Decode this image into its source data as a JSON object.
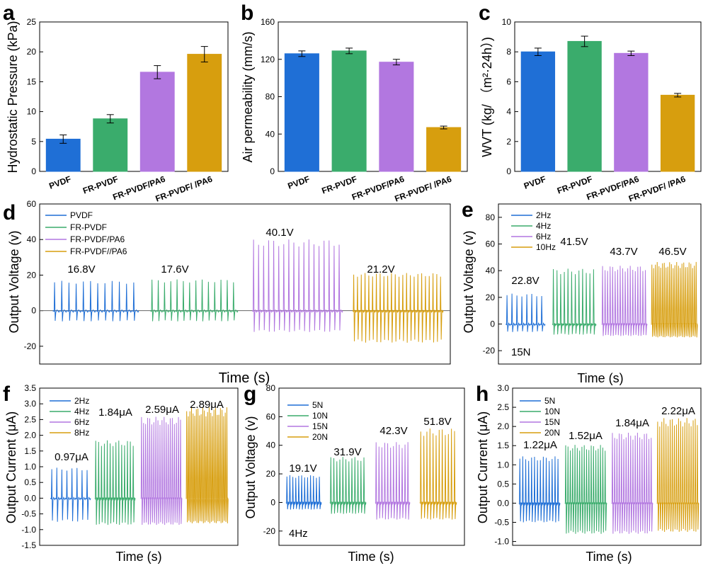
{
  "colors": [
    "#1f6fd6",
    "#3aac6c",
    "#b277e0",
    "#d79e0e"
  ],
  "chart_data": [
    {
      "id": "a",
      "type": "bar",
      "letter": "a",
      "ylabel": "Hydrostatic Pressure (kPa)",
      "ylim": [
        0,
        25
      ],
      "yticks": [
        0,
        5,
        10,
        15,
        20,
        25
      ],
      "categories": [
        "PVDF",
        "FR-PVDF",
        "FR-PVDF/PA6",
        "FR-PVDF/ /PA6"
      ],
      "values": [
        5.4,
        8.8,
        16.6,
        19.6
      ],
      "errors": [
        0.7,
        0.7,
        1.1,
        1.3
      ]
    },
    {
      "id": "b",
      "type": "bar",
      "letter": "b",
      "ylabel": "Air permeability (mm/s)",
      "ylim": [
        0,
        160
      ],
      "yticks": [
        0,
        40,
        80,
        120,
        160
      ],
      "categories": [
        "PVDF",
        "FR-PVDF",
        "FR-PVDF/PA6",
        "FR-PVDF/ /PA6"
      ],
      "values": [
        126,
        129,
        117,
        47
      ],
      "errors": [
        3,
        3,
        3,
        1.5
      ]
    },
    {
      "id": "c",
      "type": "bar",
      "letter": "c",
      "ylabel": "WVT (kg/ （m²·24h）)",
      "ylim": [
        0,
        10
      ],
      "yticks": [
        0,
        2,
        4,
        6,
        8,
        10
      ],
      "categories": [
        "PVDF",
        "FR-PVDF",
        "FR-PVDF/PA6",
        "FR-PVDF/ /PA6"
      ],
      "values": [
        8.0,
        8.7,
        7.9,
        5.1
      ],
      "errors": [
        0.25,
        0.35,
        0.15,
        0.12
      ]
    },
    {
      "id": "d",
      "type": "line",
      "letter": "d",
      "ylabel": "Output Voltage (v)",
      "xlabel": "Time (s)",
      "ylim": [
        -30,
        60
      ],
      "yticks": [
        -20,
        0,
        20,
        40,
        60
      ],
      "zero_line": true,
      "series": [
        {
          "name": "PVDF",
          "peak": 16.8,
          "low": -6,
          "pulses": 12
        },
        {
          "name": "FR-PVDF",
          "peak": 17.6,
          "low": -6,
          "pulses": 14
        },
        {
          "name": "FR-PVDF/PA6",
          "peak": 40.1,
          "low": -12,
          "pulses": 18
        },
        {
          "name": "FR-PVDF//PA6",
          "peak": 21.2,
          "low": -18,
          "pulses": 24
        }
      ],
      "peak_labels": [
        "16.8V",
        "17.6V",
        "40.1V",
        "21.2V"
      ],
      "note": ""
    },
    {
      "id": "e",
      "type": "line",
      "letter": "e",
      "ylabel": "Output Voltage (v)",
      "xlabel": "Time (s)",
      "ylim": [
        -30,
        90
      ],
      "yticks": [
        -20,
        0,
        20,
        40,
        60,
        80
      ],
      "series": [
        {
          "name": "2Hz",
          "peak": 22.8,
          "low": -6,
          "pulses": 8
        },
        {
          "name": "4Hz",
          "peak": 41.5,
          "low": -8,
          "pulses": 12
        },
        {
          "name": "6Hz",
          "peak": 43.7,
          "low": -9,
          "pulses": 18
        },
        {
          "name": "10Hz",
          "peak": 46.5,
          "low": -10,
          "pulses": 26
        }
      ],
      "peak_labels": [
        "22.8V",
        "41.5V",
        "43.7V",
        "46.5V"
      ],
      "note": "15N"
    },
    {
      "id": "f",
      "type": "line",
      "letter": "f",
      "ylabel": "Output Current (μA)",
      "xlabel": "Time (s)",
      "ylim": [
        -1.5,
        3.5
      ],
      "yticks": [
        -1.5,
        -1.0,
        -0.5,
        0.0,
        0.5,
        1.0,
        1.5,
        2.0,
        2.5,
        3.0,
        3.5
      ],
      "series": [
        {
          "name": "2Hz",
          "peak": 0.97,
          "low": -0.75,
          "pulses": 8
        },
        {
          "name": "4Hz",
          "peak": 1.84,
          "low": -0.85,
          "pulses": 14
        },
        {
          "name": "6Hz",
          "peak": 2.59,
          "low": -0.85,
          "pulses": 20
        },
        {
          "name": "8Hz",
          "peak": 2.89,
          "low": -0.8,
          "pulses": 26
        }
      ],
      "peak_labels": [
        "0.97μA",
        "1.84μA",
        "2.59μA",
        "2.89μA"
      ],
      "note": ""
    },
    {
      "id": "g",
      "type": "line",
      "letter": "g",
      "ylabel": "Output Voltage (v)",
      "xlabel": "Time (s)",
      "ylim": [
        -30,
        80
      ],
      "yticks": [
        -20,
        0,
        20,
        40,
        60,
        80
      ],
      "series": [
        {
          "name": "5N",
          "peak": 19.1,
          "low": -5,
          "pulses": 12
        },
        {
          "name": "10N",
          "peak": 31.9,
          "low": -8,
          "pulses": 12
        },
        {
          "name": "15N",
          "peak": 42.3,
          "low": -12,
          "pulses": 12
        },
        {
          "name": "20N",
          "peak": 51.8,
          "low": -12,
          "pulses": 12
        }
      ],
      "peak_labels": [
        "19.1V",
        "31.9V",
        "42.3V",
        "51.8V"
      ],
      "note": "4Hz"
    },
    {
      "id": "h",
      "type": "line",
      "letter": "h",
      "ylabel": "Output Current (μA)",
      "xlabel": "Time (s)",
      "ylim": [
        -1.1,
        3.0
      ],
      "yticks": [
        -1.0,
        -0.5,
        0.0,
        0.5,
        1.0,
        1.5,
        2.0,
        2.5,
        3.0
      ],
      "series": [
        {
          "name": "5N",
          "peak": 1.22,
          "low": -0.5,
          "pulses": 14
        },
        {
          "name": "10N",
          "peak": 1.52,
          "low": -0.8,
          "pulses": 18
        },
        {
          "name": "15N",
          "peak": 1.84,
          "low": -0.8,
          "pulses": 18
        },
        {
          "name": "20N",
          "peak": 2.22,
          "low": -0.75,
          "pulses": 20
        }
      ],
      "peak_labels": [
        "1.22μA",
        "1.52μA",
        "1.84μA",
        "2.22μA"
      ],
      "note": ""
    }
  ]
}
